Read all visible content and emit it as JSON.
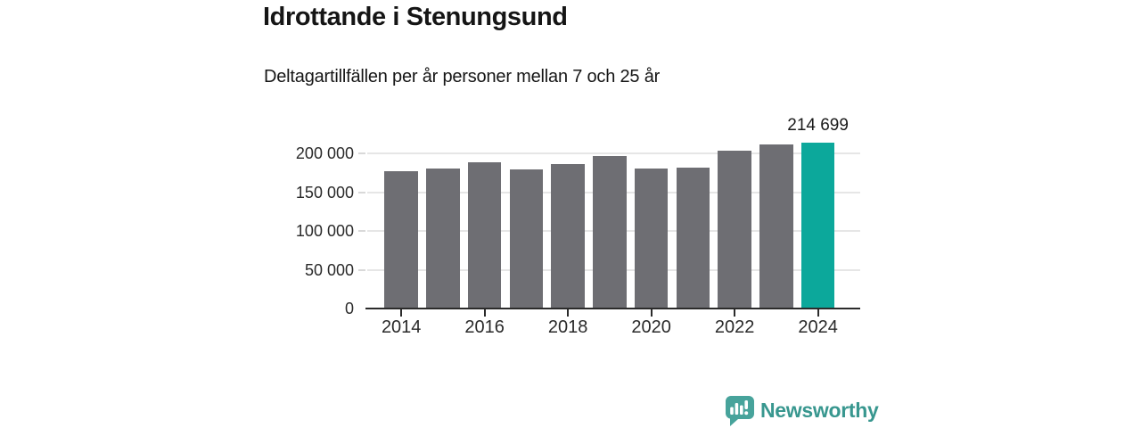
{
  "title": "Idrottande i Stenungsund",
  "subtitle": "Deltagartillfällen per år personer mellan 7 och 25 år",
  "annotation": {
    "label": "214 699",
    "category": "2024"
  },
  "branding": {
    "name": "Newsworthy",
    "icon": "newsworthy-speech-bubble-bar-chart-icon",
    "icon_color": "#47a39b",
    "text_color": "#38978f"
  },
  "colors": {
    "bar_default": "#6e6e73",
    "bar_highlight": "#0ca89b",
    "gridline": "#e6e6e6",
    "axis": "#2b2b2b",
    "text": "#1a1a1a"
  },
  "chart_data": {
    "type": "bar",
    "title": "Idrottande i Stenungsund",
    "subtitle": "Deltagartillfällen per år personer mellan 7 och 25 år",
    "categories": [
      "2014",
      "2015",
      "2016",
      "2017",
      "2018",
      "2019",
      "2020",
      "2021",
      "2022",
      "2023",
      "2024"
    ],
    "values": [
      177500,
      180500,
      189000,
      180000,
      186500,
      197000,
      181000,
      182000,
      203500,
      212000,
      214699
    ],
    "highlight_category": "2024",
    "data_label": {
      "category": "2024",
      "text": "214 699",
      "value": 214699
    },
    "xlabel": "",
    "ylabel": "",
    "ylim": [
      0,
      225000
    ],
    "y_ticks": [
      {
        "value": 0,
        "label": "0"
      },
      {
        "value": 50000,
        "label": "50 000"
      },
      {
        "value": 100000,
        "label": "100 000"
      },
      {
        "value": 150000,
        "label": "150 000"
      },
      {
        "value": 200000,
        "label": "200 000"
      }
    ],
    "x_tick_labels": [
      "2014",
      "2016",
      "2018",
      "2020",
      "2022",
      "2024"
    ],
    "grid": "horizontal",
    "legend": "none"
  }
}
